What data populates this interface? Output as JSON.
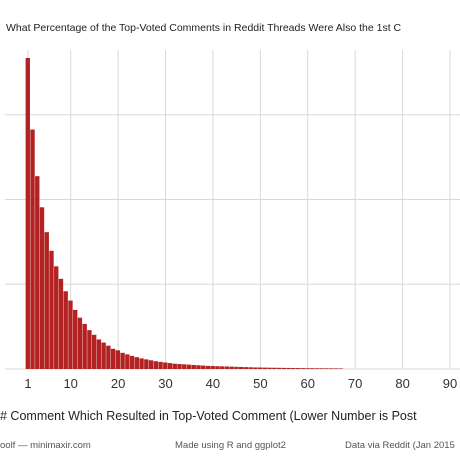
{
  "chart_data": {
    "type": "bar",
    "title": "What Percentage of the Top-Voted Comments in Reddit Threads Were Also the 1st C",
    "xlabel": "# Comment Which Resulted in Top-Voted Comment (Lower Number is Post",
    "ylabel": "",
    "x_ticks": [
      1,
      10,
      20,
      30,
      40,
      50,
      60,
      70,
      80,
      90
    ],
    "xlim": [
      0,
      92
    ],
    "ylim": [
      0,
      100
    ],
    "grid": true,
    "bar_color": "#b22222",
    "x": [
      1,
      2,
      3,
      4,
      5,
      6,
      7,
      8,
      9,
      10,
      11,
      12,
      13,
      14,
      15,
      16,
      17,
      18,
      19,
      20,
      21,
      22,
      23,
      24,
      25,
      26,
      27,
      28,
      29,
      30,
      31,
      32,
      33,
      34,
      35,
      36,
      37,
      38,
      39,
      40,
      41,
      42,
      43,
      44,
      45,
      46,
      47,
      48,
      49,
      50,
      51,
      52,
      53,
      54,
      55,
      56,
      57,
      58,
      59,
      60,
      61,
      62,
      63,
      64,
      65,
      66,
      67
    ],
    "values": [
      100,
      77,
      62,
      52,
      44,
      38,
      33,
      29,
      25,
      22,
      19,
      16.5,
      14.5,
      12.5,
      11,
      9.5,
      8.5,
      7.5,
      6.5,
      6,
      5.2,
      4.7,
      4.2,
      3.8,
      3.4,
      3.1,
      2.8,
      2.5,
      2.3,
      2.1,
      1.9,
      1.7,
      1.6,
      1.5,
      1.4,
      1.3,
      1.2,
      1.1,
      1.0,
      0.95,
      0.9,
      0.85,
      0.8,
      0.75,
      0.7,
      0.65,
      0.6,
      0.55,
      0.5,
      0.48,
      0.45,
      0.42,
      0.4,
      0.38,
      0.36,
      0.34,
      0.32,
      0.3,
      0.28,
      0.26,
      0.25,
      0.24,
      0.23,
      0.22,
      0.21,
      0.2,
      0.19
    ]
  },
  "footer": {
    "left": "oolf — minimaxir.com",
    "center": "Made using R and ggplot2",
    "right": "Data via Reddit (Jan 2015"
  }
}
